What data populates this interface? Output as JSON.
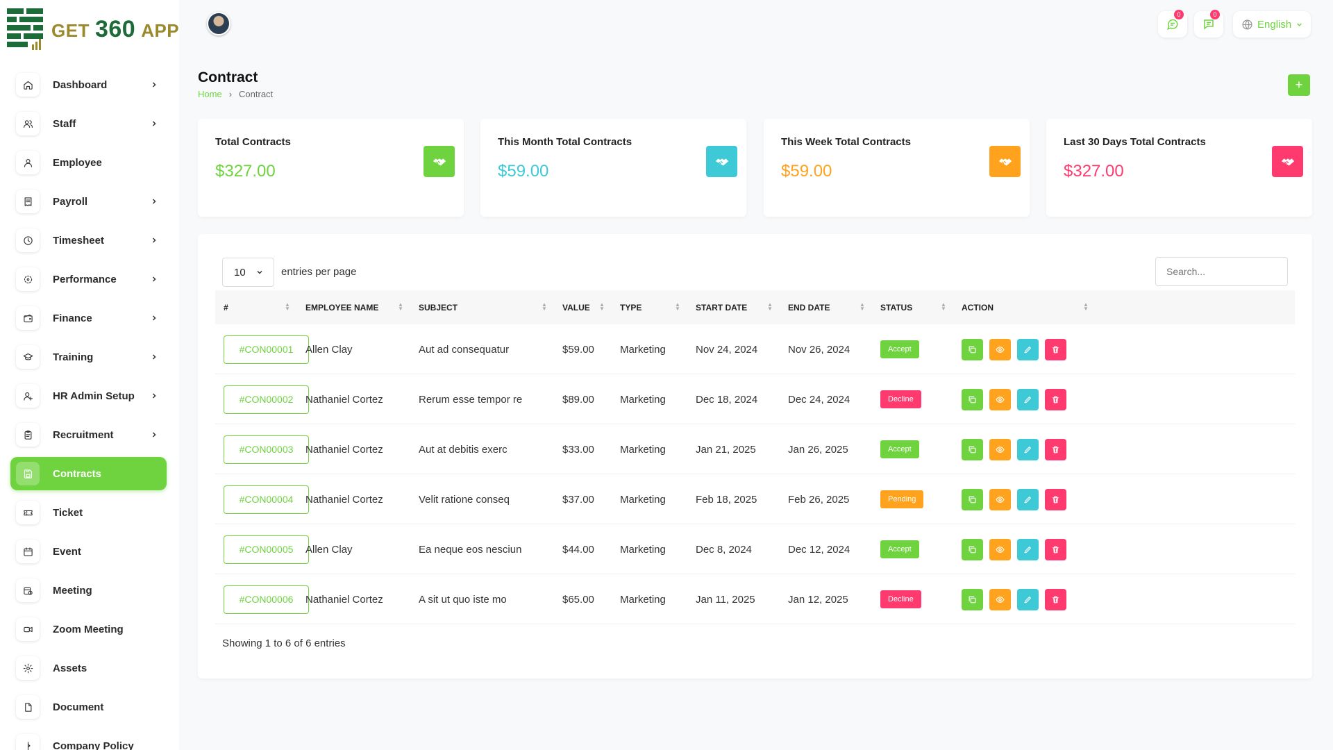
{
  "app": {
    "logo_parts": [
      "GET",
      "360",
      "APP"
    ]
  },
  "sidebar": {
    "items": [
      {
        "label": "Dashboard",
        "icon": "home-icon",
        "chevron": true
      },
      {
        "label": "Staff",
        "icon": "users-icon",
        "chevron": true
      },
      {
        "label": "Employee",
        "icon": "user-icon",
        "chevron": false
      },
      {
        "label": "Payroll",
        "icon": "receipt-icon",
        "chevron": true
      },
      {
        "label": "Timesheet",
        "icon": "clock-icon",
        "chevron": true
      },
      {
        "label": "Performance",
        "icon": "performance-icon",
        "chevron": true
      },
      {
        "label": "Finance",
        "icon": "wallet-icon",
        "chevron": true
      },
      {
        "label": "Training",
        "icon": "graduation-icon",
        "chevron": true
      },
      {
        "label": "HR Admin Setup",
        "icon": "user-plus-icon",
        "chevron": true
      },
      {
        "label": "Recruitment",
        "icon": "clipboard-icon",
        "chevron": true
      },
      {
        "label": "Contracts",
        "icon": "save-icon",
        "chevron": false,
        "active": true
      },
      {
        "label": "Ticket",
        "icon": "ticket-icon",
        "chevron": false
      },
      {
        "label": "Event",
        "icon": "calendar-icon",
        "chevron": false
      },
      {
        "label": "Meeting",
        "icon": "calendar-clock-icon",
        "chevron": false
      },
      {
        "label": "Zoom Meeting",
        "icon": "video-icon",
        "chevron": false
      },
      {
        "label": "Assets",
        "icon": "cog-icon",
        "chevron": false
      },
      {
        "label": "Document",
        "icon": "document-icon",
        "chevron": false
      },
      {
        "label": "Company Policy",
        "icon": "policy-icon",
        "chevron": false
      }
    ]
  },
  "header": {
    "message_badge": "0",
    "chat_badge": "0",
    "language": "English"
  },
  "page": {
    "title": "Contract",
    "breadcrumb": [
      "Home",
      "Contract"
    ],
    "add_label": "+"
  },
  "cards": [
    {
      "title": "Total Contracts",
      "value": "$327.00",
      "color": "#6fd33f"
    },
    {
      "title": "This Month Total Contracts",
      "value": "$59.00",
      "color": "#3ec9d6"
    },
    {
      "title": "This Week Total Contracts",
      "value": "$59.00",
      "color": "#ffa21d"
    },
    {
      "title": "Last 30 Days Total Contracts",
      "value": "$327.00",
      "color": "#ff3a6e"
    }
  ],
  "table": {
    "per_page": "10",
    "per_page_label": "entries per page",
    "search_placeholder": "Search...",
    "headers": [
      "#",
      "EMPLOYEE NAME",
      "SUBJECT",
      "VALUE",
      "TYPE",
      "START DATE",
      "END DATE",
      "STATUS",
      "ACTION"
    ],
    "rows": [
      {
        "id": "#CON00001",
        "employee": "Allen Clay",
        "subject": "Aut ad consequatur",
        "value": "$59.00",
        "type": "Marketing",
        "start": "Nov 24, 2024",
        "end": "Nov 26, 2024",
        "status": "Accept"
      },
      {
        "id": "#CON00002",
        "employee": "Nathaniel Cortez",
        "subject": "Rerum esse tempor re",
        "value": "$89.00",
        "type": "Marketing",
        "start": "Dec 18, 2024",
        "end": "Dec 24, 2024",
        "status": "Decline"
      },
      {
        "id": "#CON00003",
        "employee": "Nathaniel Cortez",
        "subject": "Aut at debitis exerc",
        "value": "$33.00",
        "type": "Marketing",
        "start": "Jan 21, 2025",
        "end": "Jan 26, 2025",
        "status": "Accept"
      },
      {
        "id": "#CON00004",
        "employee": "Nathaniel Cortez",
        "subject": "Velit ratione conseq",
        "value": "$37.00",
        "type": "Marketing",
        "start": "Feb 18, 2025",
        "end": "Feb 26, 2025",
        "status": "Pending"
      },
      {
        "id": "#CON00005",
        "employee": "Allen Clay",
        "subject": "Ea neque eos nesciun",
        "value": "$44.00",
        "type": "Marketing",
        "start": "Dec 8, 2024",
        "end": "Dec 12, 2024",
        "status": "Accept"
      },
      {
        "id": "#CON00006",
        "employee": "Nathaniel Cortez",
        "subject": "A sit ut quo iste mo",
        "value": "$65.00",
        "type": "Marketing",
        "start": "Jan 11, 2025",
        "end": "Jan 12, 2025",
        "status": "Decline"
      }
    ],
    "status_colors": {
      "Accept": "#6fd33f",
      "Decline": "#ff3a6e",
      "Pending": "#ffa21d"
    },
    "action_colors": {
      "duplicate": "#6fd33f",
      "view": "#ffa21d",
      "edit": "#3ec9d6",
      "delete": "#ff3a6e"
    },
    "footer": "Showing 1 to 6 of 6 entries"
  }
}
